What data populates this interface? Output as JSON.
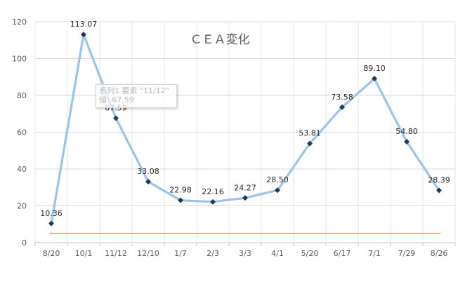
{
  "chart_data": {
    "type": "line",
    "title": "ＣＥＡ変化",
    "categories": [
      "8/20",
      "10/1",
      "11/12",
      "12/10",
      "1/7",
      "2/3",
      "3/3",
      "4/1",
      "5/20",
      "6/17",
      "7/1",
      "7/29",
      "8/26"
    ],
    "series": [
      {
        "values": [
          10.36,
          113.07,
          67.59,
          33.08,
          22.98,
          22.16,
          24.27,
          28.5,
          53.81,
          73.58,
          89.1,
          54.8,
          28.39
        ],
        "labels": [
          "10.36",
          "113.07",
          "67.59",
          "33.08",
          "22.98",
          "22.16",
          "24.27",
          "28.50",
          "53.81",
          "73.58",
          "89.10",
          "54.80",
          "28.39"
        ],
        "line_color": "#9dc3e6",
        "marker_color": "#1f3864"
      },
      {
        "values": [
          5,
          5,
          5,
          5,
          5,
          5,
          5,
          5,
          5,
          5,
          5,
          5,
          5
        ],
        "line_color": "#ed7d31"
      }
    ],
    "ylim": [
      0,
      120
    ],
    "yticks": [
      "0",
      "20",
      "40",
      "60",
      "80",
      "100",
      "120"
    ],
    "grid": true,
    "legend": "none",
    "xlabel": "",
    "ylabel": ""
  },
  "tooltip": {
    "line1": "系列1 要素 \"11/12\"",
    "line2": "値: 67.59"
  }
}
